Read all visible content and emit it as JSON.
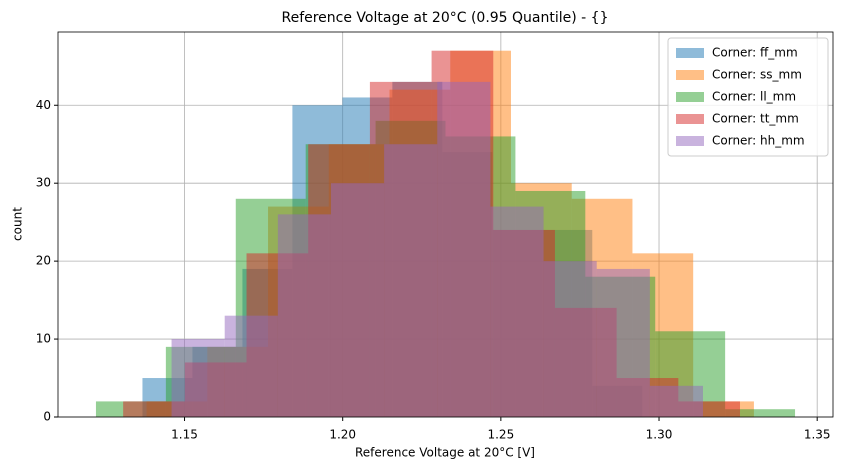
{
  "chart_data": {
    "type": "histogram",
    "title": "Reference Voltage at 20°C (0.95 Quantile) - {}",
    "x_label": "Reference Voltage at 20°C [V]",
    "y_label": "count",
    "xlim": [
      1.11,
      1.355
    ],
    "ylim": [
      0,
      49.4
    ],
    "xticks": [
      1.15,
      {
        "value": 1.2,
        "label": "1.20"
      },
      1.25,
      {
        "value": 1.3,
        "label": "1.30"
      },
      1.35
    ],
    "yticks": [
      0,
      10,
      20,
      30,
      40
    ],
    "grid": true,
    "legend": "upper right",
    "alpha": 0.5,
    "series": [
      {
        "name": "Corner: ff_mm",
        "color": "#1f77b4",
        "bins": [
          1.1367,
          1.1525,
          1.1683,
          1.1841,
          1.1999,
          1.2157,
          1.2315,
          1.2473,
          1.2631,
          1.2789,
          1.2947
        ],
        "values": [
          5,
          9,
          19,
          40,
          41,
          43,
          34,
          24,
          24,
          4
        ]
      },
      {
        "name": "Corner: ss_mm",
        "color": "#ff7f0e",
        "bins": [
          1.138,
          1.1572,
          1.1764,
          1.1956,
          1.2148,
          1.234,
          1.2532,
          1.2724,
          1.2916,
          1.3108,
          1.33
        ],
        "values": [
          2,
          9,
          27,
          35,
          42,
          47,
          30,
          28,
          21,
          2
        ]
      },
      {
        "name": "Corner: ll_mm",
        "color": "#2ca02c",
        "bins": [
          1.122,
          1.1441,
          1.1662,
          1.1883,
          1.2104,
          1.2325,
          1.2546,
          1.2767,
          1.2988,
          1.3209,
          1.343
        ],
        "values": [
          2,
          9,
          28,
          35,
          38,
          36,
          29,
          18,
          11,
          1
        ]
      },
      {
        "name": "Corner: tt_mm",
        "color": "#d62728",
        "bins": [
          1.1306,
          1.1501,
          1.1696,
          1.1891,
          1.2086,
          1.2281,
          1.2476,
          1.2671,
          1.2866,
          1.3061,
          1.3256
        ],
        "values": [
          2,
          7,
          21,
          35,
          43,
          47,
          24,
          14,
          5,
          2
        ]
      },
      {
        "name": "Corner: hh_mm",
        "color": "#9467bd",
        "bins": [
          1.1459,
          1.1627,
          1.1795,
          1.1963,
          1.2131,
          1.2299,
          1.2467,
          1.2635,
          1.2803,
          1.2971,
          1.3139
        ],
        "values": [
          10,
          13,
          26,
          30,
          35,
          43,
          27,
          20,
          19,
          4
        ]
      }
    ]
  }
}
